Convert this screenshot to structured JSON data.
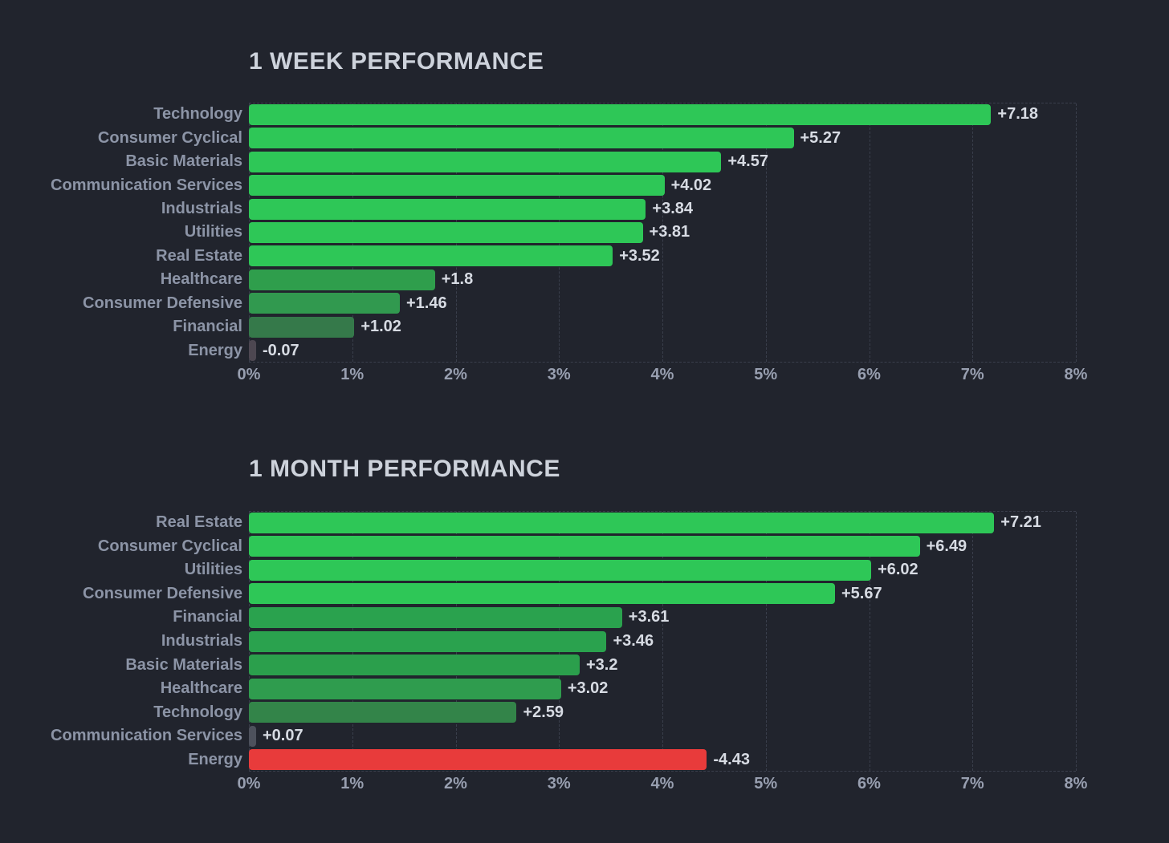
{
  "page": {
    "background_color": "#21242d",
    "title_color": "#cdd2db",
    "category_label_color": "#8c94a6",
    "value_label_color": "#d7dbe3",
    "tick_label_color": "#989fb0",
    "gridline_color": "#3a3f4c",
    "positive_color": "#2ec757",
    "negative_color": "#e83b3b"
  },
  "chart_data": [
    {
      "type": "bar",
      "orientation": "horizontal",
      "title": "1 WEEK PERFORMANCE",
      "categories": [
        "Technology",
        "Consumer Cyclical",
        "Basic Materials",
        "Communication Services",
        "Industrials",
        "Utilities",
        "Real Estate",
        "Healthcare",
        "Consumer Defensive",
        "Financial",
        "Energy"
      ],
      "values": [
        7.18,
        5.27,
        4.57,
        4.02,
        3.84,
        3.81,
        3.52,
        1.8,
        1.46,
        1.02,
        -0.07
      ],
      "value_labels": [
        "+7.18",
        "+5.27",
        "+4.57",
        "+4.02",
        "+3.84",
        "+3.81",
        "+3.52",
        "+1.8",
        "+1.46",
        "+1.02",
        "-0.07"
      ],
      "bar_colors": [
        "#2ec757",
        "#2ec757",
        "#2ec757",
        "#2ec757",
        "#2ec757",
        "#2ec757",
        "#2ec757",
        "#2f9e4c",
        "#31994f",
        "#35794a",
        "#4d4751"
      ],
      "xlabel": "",
      "ylabel": "",
      "xlim": [
        0,
        8
      ],
      "x_ticks": [
        "0%",
        "1%",
        "2%",
        "3%",
        "4%",
        "5%",
        "6%",
        "7%",
        "8%"
      ],
      "grid": "vertical dashed",
      "legend": "none",
      "negative_values_plotted_as_absolute_length": true
    },
    {
      "type": "bar",
      "orientation": "horizontal",
      "title": "1 MONTH PERFORMANCE",
      "categories": [
        "Real Estate",
        "Consumer Cyclical",
        "Utilities",
        "Consumer Defensive",
        "Financial",
        "Industrials",
        "Basic Materials",
        "Healthcare",
        "Technology",
        "Communication Services",
        "Energy"
      ],
      "values": [
        7.21,
        6.49,
        6.02,
        5.67,
        3.61,
        3.46,
        3.2,
        3.02,
        2.59,
        0.07,
        -4.43
      ],
      "value_labels": [
        "+7.21",
        "+6.49",
        "+6.02",
        "+5.67",
        "+3.61",
        "+3.46",
        "+3.2",
        "+3.02",
        "+2.59",
        "+0.07",
        "-4.43"
      ],
      "bar_colors": [
        "#2ec757",
        "#2ec757",
        "#2ec757",
        "#2ec757",
        "#2aa24e",
        "#2aa24e",
        "#2b9f4c",
        "#2f9c4e",
        "#338449",
        "#4d515c",
        "#e83b3b"
      ],
      "xlabel": "",
      "ylabel": "",
      "xlim": [
        0,
        8
      ],
      "x_ticks": [
        "0%",
        "1%",
        "2%",
        "3%",
        "4%",
        "5%",
        "6%",
        "7%",
        "8%"
      ],
      "grid": "vertical dashed",
      "legend": "none",
      "negative_values_plotted_as_absolute_length": true
    }
  ]
}
